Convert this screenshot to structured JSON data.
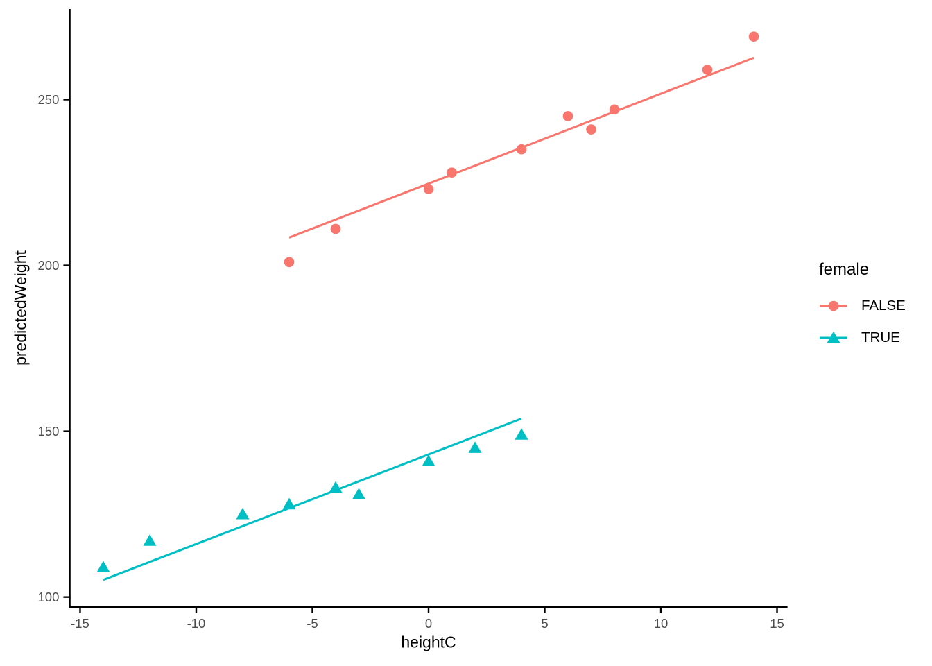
{
  "chart_data": {
    "type": "scatter",
    "title": "",
    "xlabel": "heightC",
    "ylabel": "predictedWeight",
    "x_ticks": [
      -15,
      -10,
      -5,
      0,
      5,
      10,
      15
    ],
    "y_ticks": [
      100,
      150,
      200,
      250
    ],
    "xlim": [
      -15.45,
      15.45
    ],
    "ylim": [
      97,
      277.3
    ],
    "grid": false,
    "background": "#ffffff",
    "axis_color": "#000000",
    "tick_label_color": "#4d4d4d",
    "legend": {
      "title": "female",
      "position": "right",
      "entries": [
        {
          "label": "FALSE",
          "color": "#F8766D",
          "marker": "circle"
        },
        {
          "label": "TRUE",
          "color": "#00BFC4",
          "marker": "triangle"
        }
      ]
    },
    "series": [
      {
        "name": "FALSE",
        "color": "#F8766D",
        "marker": "circle",
        "points": [
          [
            -6,
            201
          ],
          [
            -4,
            211
          ],
          [
            0,
            223
          ],
          [
            1,
            228
          ],
          [
            4,
            235
          ],
          [
            6,
            245
          ],
          [
            7,
            241
          ],
          [
            8,
            247
          ],
          [
            12,
            259
          ],
          [
            14,
            269
          ]
        ],
        "fit_line": {
          "x1": -6,
          "y1": 208.4,
          "x2": 14,
          "y2": 262.6
        }
      },
      {
        "name": "TRUE",
        "color": "#00BFC4",
        "marker": "triangle",
        "points": [
          [
            -14,
            109
          ],
          [
            -12,
            117
          ],
          [
            -8,
            125
          ],
          [
            -6,
            128
          ],
          [
            -4,
            133
          ],
          [
            -3,
            131
          ],
          [
            0,
            141
          ],
          [
            2,
            145
          ],
          [
            4,
            149
          ]
        ],
        "fit_line": {
          "x1": -14,
          "y1": 105.2,
          "x2": 4,
          "y2": 153.8
        }
      }
    ]
  }
}
